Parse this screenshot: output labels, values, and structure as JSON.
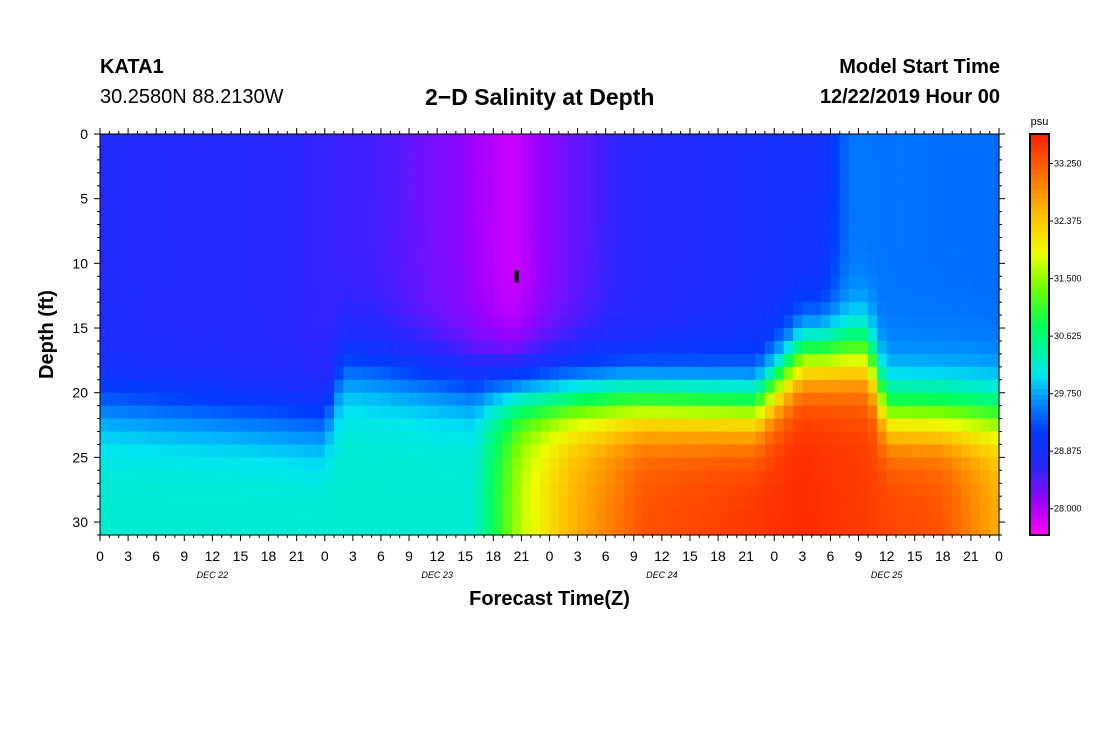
{
  "header": {
    "station": "KATA1",
    "coords": "30.2580N 88.2130W",
    "title": "2−D Salinity at Depth",
    "model_start_label": "Model Start Time",
    "model_start_time": "12/22/2019 Hour 00"
  },
  "chart_data": {
    "type": "heatmap",
    "title": "2−D Salinity at Depth",
    "xlabel": "Forecast Time(Z)",
    "ylabel": "Depth (ft)",
    "x_hours": [
      0,
      96
    ],
    "ylim": [
      0,
      31
    ],
    "y_ticks": [
      0,
      5,
      10,
      15,
      20,
      25,
      30
    ],
    "x_tick_labels": [
      "0",
      "3",
      "6",
      "9",
      "12",
      "15",
      "18",
      "21",
      "0",
      "3",
      "6",
      "9",
      "12",
      "15",
      "18",
      "21",
      "0",
      "3",
      "6",
      "9",
      "12",
      "15",
      "18",
      "21",
      "0",
      "3",
      "6",
      "9",
      "12",
      "15",
      "18",
      "21",
      "0"
    ],
    "date_labels": [
      {
        "hour": 12,
        "label": "DEC 22"
      },
      {
        "hour": 36,
        "label": "DEC 23"
      },
      {
        "hour": 60,
        "label": "DEC 24"
      },
      {
        "hour": 84,
        "label": "DEC 25"
      }
    ],
    "colorbar": {
      "unit": "psu",
      "min": 27.6,
      "max": 33.7,
      "ticks": [
        "33.250",
        "32.375",
        "31.500",
        "30.625",
        "29.750",
        "28.875",
        "28.000"
      ]
    },
    "surface_salinity": [
      {
        "hour": 0,
        "psu": 28.75
      },
      {
        "hour": 18,
        "psu": 28.65
      },
      {
        "hour": 30,
        "psu": 28.5
      },
      {
        "hour": 39,
        "psu": 28.15
      },
      {
        "hour": 44,
        "psu": 27.85
      },
      {
        "hour": 48,
        "psu": 28.2
      },
      {
        "hour": 55,
        "psu": 28.6
      },
      {
        "hour": 70,
        "psu": 28.85
      },
      {
        "hour": 77,
        "psu": 28.9
      },
      {
        "hour": 80,
        "psu": 29.5
      },
      {
        "hour": 96,
        "psu": 29.45
      }
    ],
    "bottom_salinity": [
      {
        "hour": 0,
        "psu": 30.2
      },
      {
        "hour": 40,
        "psu": 30.2
      },
      {
        "hour": 45,
        "psu": 31.7
      },
      {
        "hour": 50,
        "psu": 32.5
      },
      {
        "hour": 58,
        "psu": 33.3
      },
      {
        "hour": 75,
        "psu": 33.6
      },
      {
        "hour": 90,
        "psu": 33.3
      },
      {
        "hour": 96,
        "psu": 32.6
      }
    ],
    "halocline_depth_ft": [
      {
        "hour": 0,
        "depth": 21
      },
      {
        "hour": 24,
        "depth": 22.5
      },
      {
        "hour": 26,
        "depth": 18
      },
      {
        "hour": 48,
        "depth": 20
      },
      {
        "hour": 70,
        "depth": 21
      },
      {
        "hour": 75,
        "depth": 17
      },
      {
        "hour": 82,
        "depth": 17
      },
      {
        "hour": 84,
        "depth": 21.5
      },
      {
        "hour": 96,
        "depth": 21.5
      }
    ],
    "marker": {
      "hour": 44.5,
      "depth_ft": 11
    }
  }
}
